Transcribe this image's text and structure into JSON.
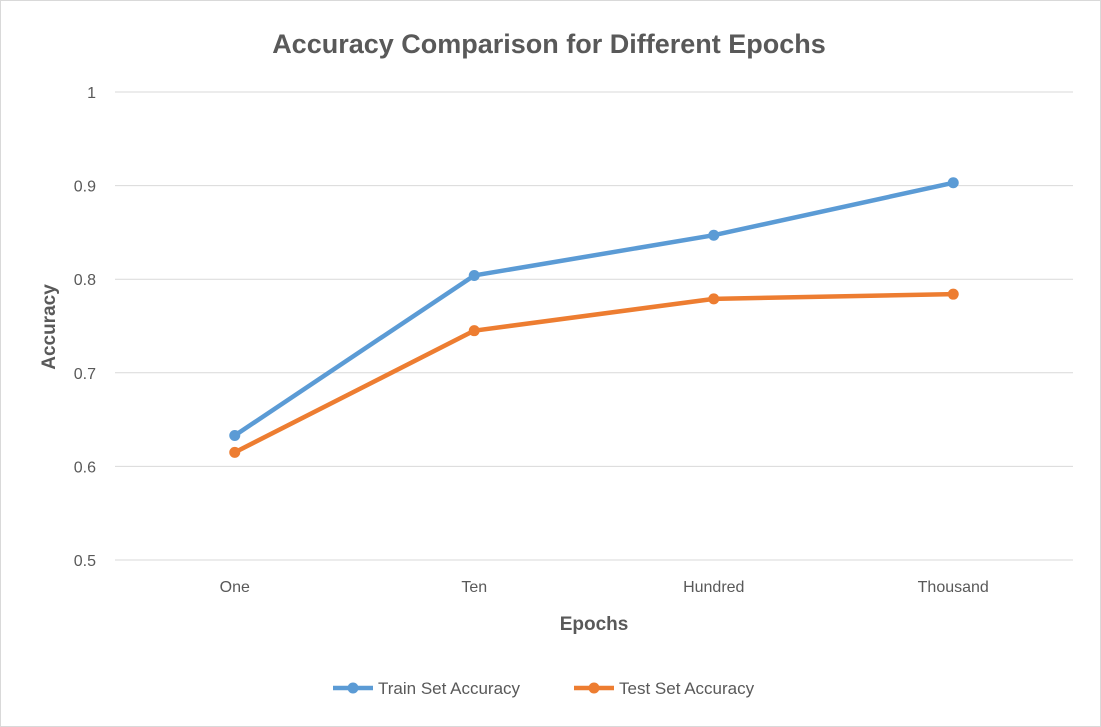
{
  "chart_data": {
    "type": "line",
    "title": "Accuracy Comparison for Different Epochs",
    "xlabel": "Epochs",
    "ylabel": "Accuracy",
    "categories": [
      "One",
      "Ten",
      "Hundred",
      "Thousand"
    ],
    "ylim": [
      0.5,
      1
    ],
    "yticks": [
      0.5,
      0.6,
      0.7,
      0.8,
      0.9,
      1
    ],
    "ytick_labels": [
      "0.5",
      "0.6",
      "0.7",
      "0.8",
      "0.9",
      "1"
    ],
    "grid": true,
    "legend_position": "bottom",
    "series": [
      {
        "name": "Train Set Accuracy",
        "color": "#5b9bd5",
        "values": [
          0.633,
          0.804,
          0.847,
          0.903
        ]
      },
      {
        "name": "Test Set Accuracy",
        "color": "#ed7d31",
        "values": [
          0.615,
          0.745,
          0.779,
          0.784
        ]
      }
    ]
  }
}
